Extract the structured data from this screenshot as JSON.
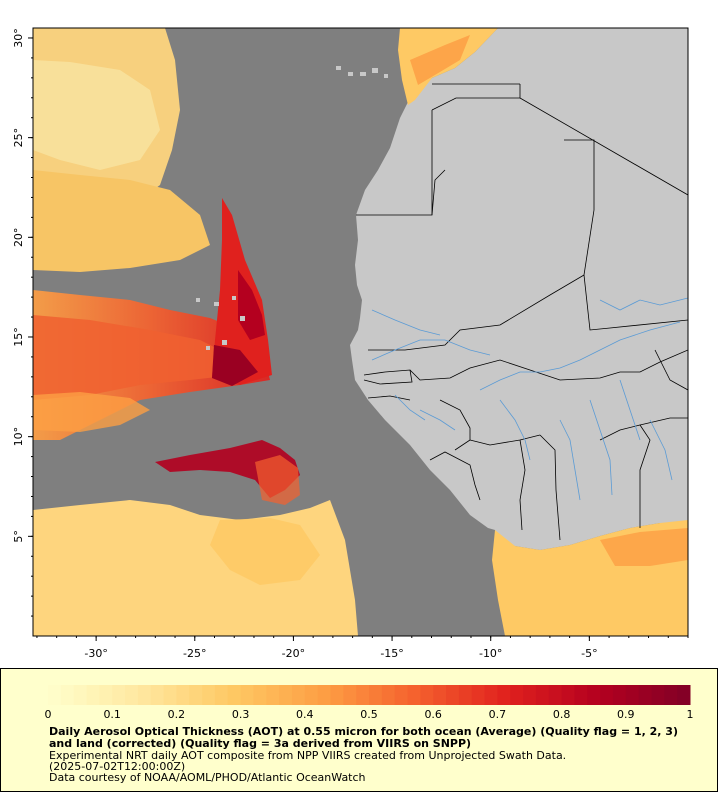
{
  "map": {
    "lon_range": [
      -33.2,
      0
    ],
    "lat_range": [
      0,
      30.5
    ],
    "x_ticks": [
      {
        "lon": -30,
        "label": "-30°"
      },
      {
        "lon": -25,
        "label": "-25°"
      },
      {
        "lon": -20,
        "label": "-20°"
      },
      {
        "lon": -15,
        "label": "-15°"
      },
      {
        "lon": -10,
        "label": "-10°"
      },
      {
        "lon": -5,
        "label": "-5°"
      }
    ],
    "y_ticks": [
      {
        "lat": 5,
        "label": "5°"
      },
      {
        "lat": 10,
        "label": "10°"
      },
      {
        "lat": 15,
        "label": "15°"
      },
      {
        "lat": 20,
        "label": "20°"
      },
      {
        "lat": 25,
        "label": "25°"
      },
      {
        "lat": 30,
        "label": "30°"
      }
    ],
    "colors": {
      "ocean_no_data": "#7f7f7f",
      "land": "#c8c8c8",
      "border": "#000000",
      "river": "#5b9bd5",
      "frame_bg": "#ffffff"
    }
  },
  "legend": {
    "colorbar_min": 0,
    "colorbar_max": 1,
    "colorbar_ticks": [
      {
        "value": 0,
        "label": "0"
      },
      {
        "value": 0.1,
        "label": "0.1"
      },
      {
        "value": 0.2,
        "label": "0.2"
      },
      {
        "value": 0.3,
        "label": "0.3"
      },
      {
        "value": 0.4,
        "label": "0.4"
      },
      {
        "value": 0.5,
        "label": "0.5"
      },
      {
        "value": 0.6,
        "label": "0.6"
      },
      {
        "value": 0.7,
        "label": "0.7"
      },
      {
        "value": 0.8,
        "label": "0.8"
      },
      {
        "value": 0.9,
        "label": "0.9"
      },
      {
        "value": 1,
        "label": "1"
      }
    ],
    "colorbar_stops": [
      "#ffffcc",
      "#ffe8a0",
      "#fec964",
      "#fd9f44",
      "#f5612e",
      "#e0211e",
      "#b4001f",
      "#800026"
    ],
    "title": "Daily Aerosol Optical Thickness (AOT) at 0.55 micron for both ocean (Average) (Quality flag = 1, 2, 3) and land (corrected) (Quality flag = 3a derived from VIIRS on SNPP)",
    "subtitle_line1": "Experimental NRT daily AOT composite from NPP VIIRS created from Unprojected Swath Data.",
    "subtitle_line2": "(2025-07-02T12:00:00Z)",
    "credit": "Data courtesy of NOAA/AOML/PHOD/Atlantic OceanWatch"
  }
}
